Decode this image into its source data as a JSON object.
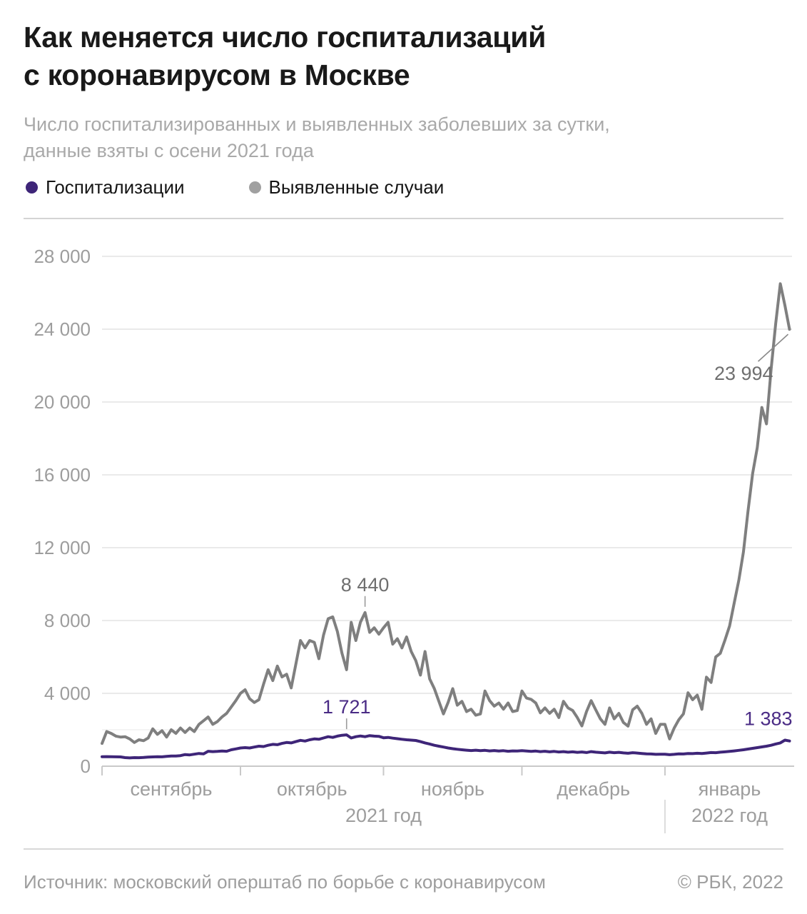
{
  "header": {
    "title_line1": "Как меняется число госпитализаций",
    "title_line2": "с коронавирусом в Москве",
    "subtitle_line1": "Число госпитализированных и выявленных заболевших за сутки,",
    "subtitle_line2": "данные взяты с осени 2021 года"
  },
  "legend": {
    "items": [
      {
        "label": "Госпитализации",
        "color": "#3e2578"
      },
      {
        "label": "Выявленные случаи",
        "color": "#a0a0a0"
      }
    ]
  },
  "chart_data": {
    "type": "line",
    "months": [
      {
        "label": "сентябрь",
        "days": 30
      },
      {
        "label": "октябрь",
        "days": 31
      },
      {
        "label": "ноябрь",
        "days": 30
      },
      {
        "label": "декабрь",
        "days": 31
      },
      {
        "label": "январь",
        "days": 28
      }
    ],
    "year_labels": [
      {
        "label": "2021 год",
        "from_day": 0,
        "to_day": 122
      },
      {
        "label": "2022 год",
        "from_day": 122,
        "to_day": 150
      }
    ],
    "year_divider_day": 122,
    "y_axis": {
      "max": 28000,
      "ticks": [
        0,
        4000,
        8000,
        12000,
        16000,
        20000,
        24000,
        28000
      ],
      "tick_labels": [
        "0",
        "4 000",
        "8 000",
        "12 000",
        "16 000",
        "20 000",
        "24 000",
        "28 000"
      ],
      "minor_line_value": 2000
    },
    "series": [
      {
        "id": "hospitalizations",
        "name": "Госпитализации",
        "color": "#3e2578",
        "label_color": "#4a2b85",
        "values": [
          520,
          525,
          520,
          515,
          510,
          470,
          455,
          470,
          465,
          480,
          500,
          510,
          520,
          515,
          540,
          560,
          555,
          580,
          640,
          620,
          660,
          700,
          680,
          820,
          800,
          810,
          830,
          820,
          900,
          950,
          1000,
          1020,
          1000,
          1050,
          1100,
          1080,
          1150,
          1200,
          1180,
          1250,
          1300,
          1280,
          1350,
          1420,
          1380,
          1450,
          1500,
          1480,
          1550,
          1620,
          1580,
          1650,
          1700,
          1721,
          1550,
          1620,
          1660,
          1620,
          1680,
          1650,
          1640,
          1560,
          1580,
          1540,
          1510,
          1480,
          1450,
          1430,
          1410,
          1350,
          1280,
          1220,
          1150,
          1100,
          1050,
          1000,
          960,
          930,
          900,
          880,
          860,
          880,
          850,
          870,
          840,
          860,
          830,
          850,
          820,
          840,
          830,
          850,
          830,
          810,
          830,
          800,
          820,
          790,
          810,
          780,
          800,
          770,
          790,
          760,
          780,
          750,
          800,
          770,
          750,
          730,
          770,
          740,
          760,
          730,
          710,
          740,
          720,
          700,
          680,
          670,
          650,
          660,
          660,
          630,
          650,
          680,
          670,
          700,
          690,
          710,
          700,
          720,
          750,
          740,
          770,
          790,
          810,
          840,
          870,
          900,
          940,
          980,
          1020,
          1060,
          1100,
          1150,
          1220,
          1280,
          1430,
          1383
        ]
      },
      {
        "id": "cases",
        "name": "Выявленные случаи",
        "color": "#7f7f7f",
        "label_color": "#6f6f6f",
        "values": [
          1250,
          1900,
          1800,
          1650,
          1600,
          1620,
          1500,
          1300,
          1450,
          1400,
          1550,
          2050,
          1750,
          1950,
          1600,
          2000,
          1800,
          2100,
          1850,
          2100,
          1900,
          2300,
          2500,
          2700,
          2300,
          2450,
          2700,
          2900,
          3250,
          3600,
          4000,
          4200,
          3700,
          3500,
          3650,
          4500,
          5300,
          4700,
          5500,
          4900,
          5050,
          4300,
          5600,
          6900,
          6500,
          6900,
          6800,
          5900,
          7200,
          8100,
          8200,
          7400,
          6200,
          5300,
          7900,
          6900,
          7900,
          8440,
          7350,
          7600,
          7250,
          7600,
          7900,
          6700,
          7000,
          6500,
          7100,
          6300,
          5800,
          5000,
          6300,
          4800,
          4270,
          3560,
          2870,
          3500,
          4260,
          3350,
          3560,
          3000,
          3130,
          2800,
          2870,
          4130,
          3600,
          3300,
          3470,
          3130,
          3470,
          3000,
          3060,
          4130,
          3740,
          3670,
          3470,
          2930,
          3200,
          2900,
          3130,
          2670,
          3560,
          3200,
          3060,
          2670,
          2210,
          3000,
          3600,
          3100,
          2600,
          2300,
          3200,
          2600,
          2900,
          2400,
          2200,
          3100,
          3300,
          2900,
          2300,
          2600,
          1800,
          2300,
          2300,
          1500,
          2100,
          2550,
          2870,
          4030,
          3650,
          3900,
          3120,
          4890,
          4600,
          6000,
          6200,
          6920,
          7700,
          8950,
          10200,
          11760,
          14000,
          16070,
          17500,
          19700,
          18800,
          21800,
          24300,
          26500,
          25300,
          23994
        ]
      }
    ],
    "annotations": [
      {
        "text": "8 440",
        "series": "cases",
        "day_index": 57,
        "value": 8440,
        "style": "tick-above"
      },
      {
        "text": "1 721",
        "series": "hospitalizations",
        "day_index": 53,
        "value": 1721,
        "style": "tick-above"
      },
      {
        "text": "1 383",
        "series": "hospitalizations",
        "day_index": 149,
        "value": 1383,
        "style": "end-left"
      },
      {
        "text": "23 994",
        "series": "cases",
        "day_index": 149,
        "value": 23994,
        "style": "callout-left"
      }
    ]
  },
  "footer": {
    "source": "Источник: московский оперштаб по борьбе с коронавирусом",
    "copyright": "© РБК, 2022"
  }
}
